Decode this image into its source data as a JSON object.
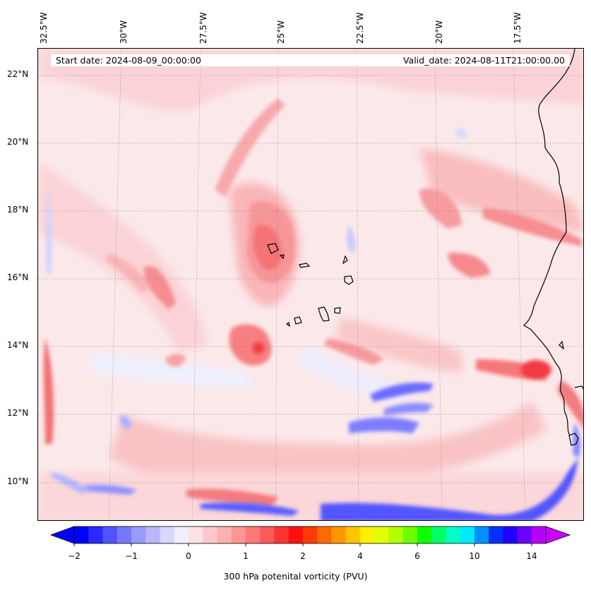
{
  "header": {
    "start_date": "Start date: 2024-08-09_00:00:00",
    "valid_date": "Valid_date: 2024-08-11T21:00:00.00"
  },
  "lon_labels": [
    "32.5°W",
    "30°W",
    "27.5°W",
    "25°W",
    "22.5°W",
    "20°W",
    "17.5°W"
  ],
  "lat_labels": [
    "22°N",
    "20°N",
    "18°N",
    "16°N",
    "14°N",
    "12°N",
    "10°N"
  ],
  "colorbar": {
    "title": "300 hPa potenital vorticity (PVU)",
    "tick_labels": [
      "−2",
      "−1",
      "0",
      "1",
      "2",
      "4",
      "6",
      "10",
      "14"
    ],
    "colors": [
      "#0000ff",
      "#2a2aff",
      "#5252ff",
      "#7878ff",
      "#9a9aff",
      "#b8b8ff",
      "#d6d6ff",
      "#eef0ff",
      "#fde2e2",
      "#fcc9c9",
      "#fcb0b0",
      "#fd9595",
      "#fd7878",
      "#fe5a5a",
      "#ff3333",
      "#ff1010",
      "#ff3b00",
      "#ff6a00",
      "#ff9600",
      "#ffc300",
      "#ffef00",
      "#e1ff00",
      "#b0ff00",
      "#6dff00",
      "#10ff00",
      "#00ff66",
      "#00ffc2",
      "#00eaff",
      "#0091ff",
      "#0030ff",
      "#2200ff",
      "#6a00ff",
      "#b800ff"
    ],
    "low_extend_color": "#0000ff",
    "high_extend_color": "#cc00ff"
  },
  "map": {
    "background_color": "#fbe9ea",
    "coastline_color": "#000000"
  }
}
